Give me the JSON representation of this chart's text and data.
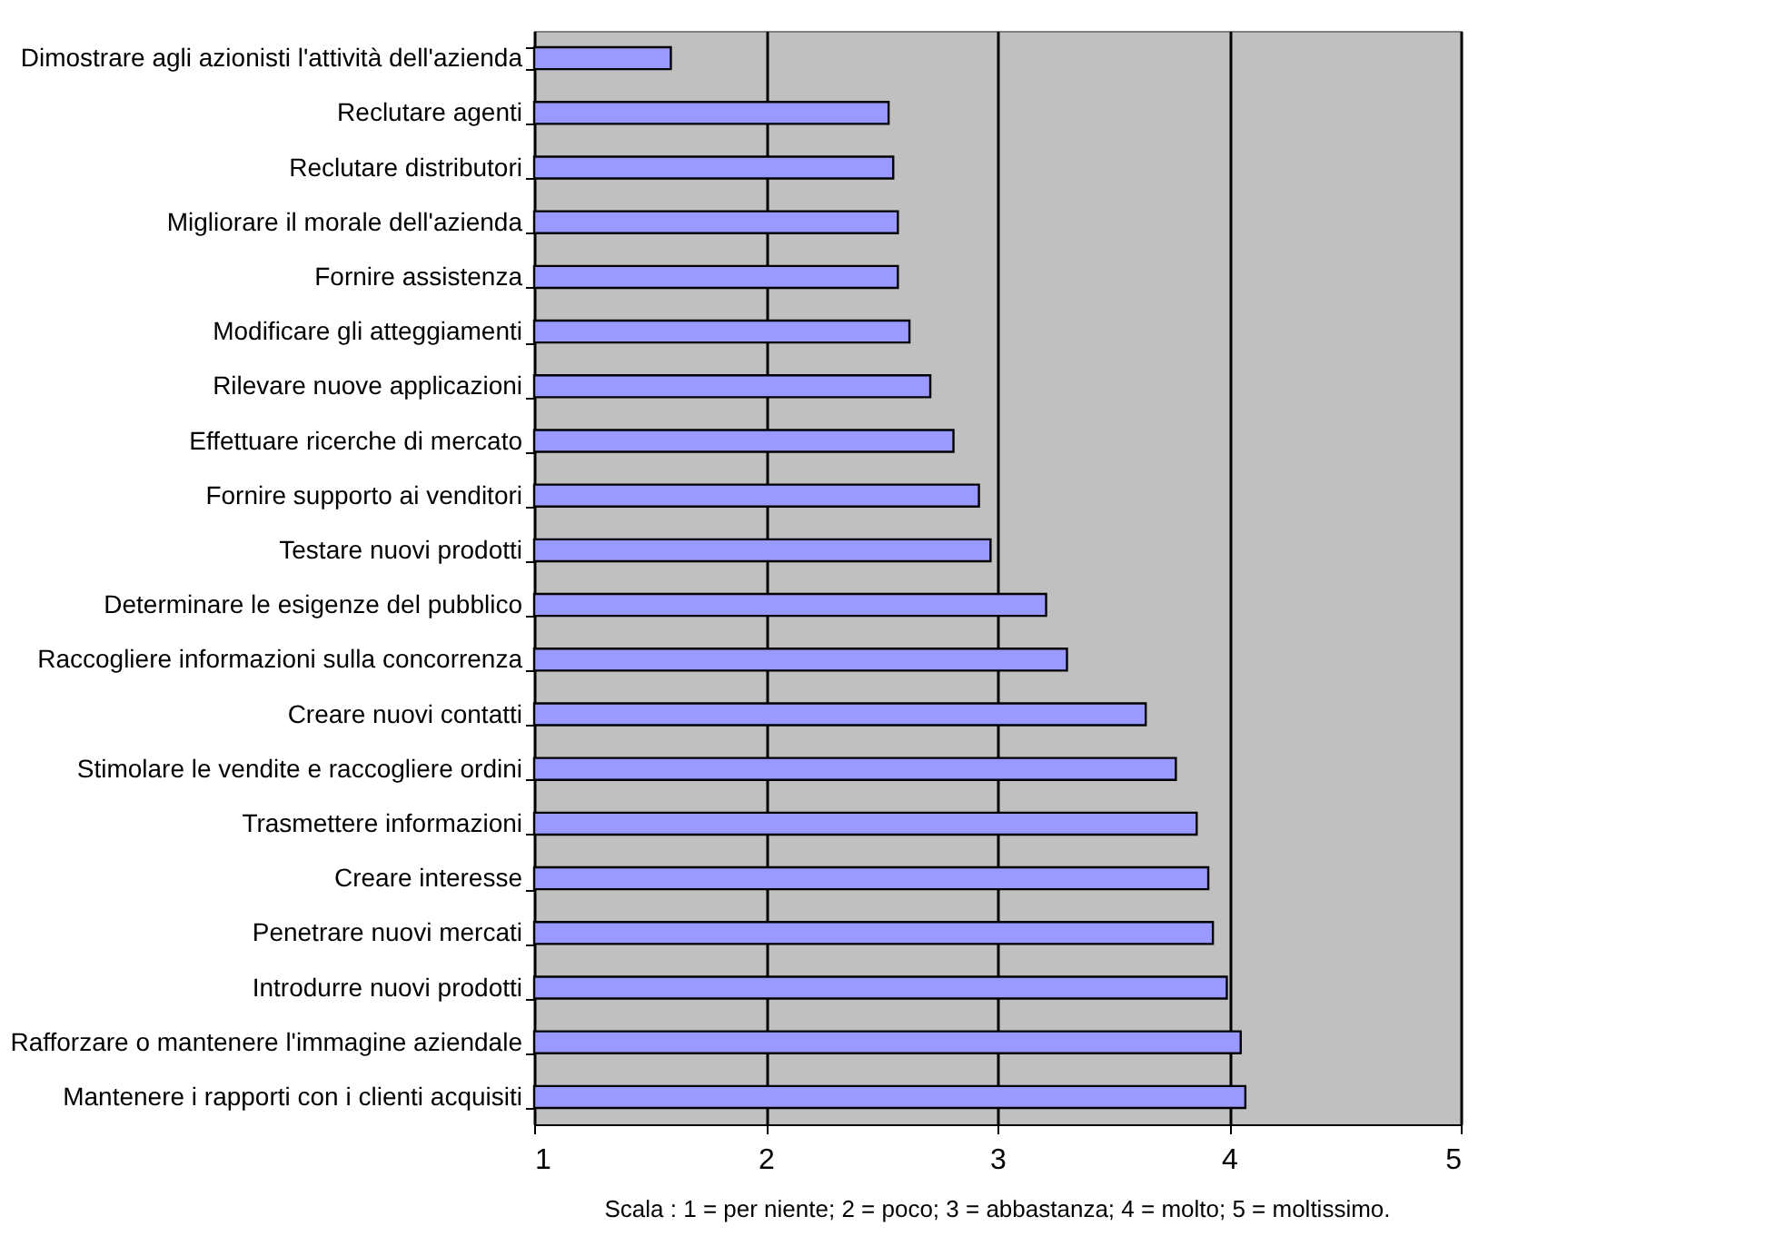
{
  "chart_data": {
    "type": "bar",
    "orientation": "horizontal",
    "categories": [
      "Dimostrare agli azionisti l'attività dell'azienda",
      "Reclutare agenti",
      "Reclutare distributori",
      "Migliorare il morale dell'azienda",
      "Fornire assistenza",
      "Modificare gli atteggiamenti ",
      "Rilevare nuove applicazioni",
      "Effettuare ricerche di mercato",
      "Fornire supporto ai venditori",
      "Testare nuovi prodotti",
      "Determinare le esigenze del pubblico",
      "Raccogliere informazioni sulla concorrenza",
      "Creare nuovi contatti",
      "Stimolare le vendite e raccogliere ordini",
      "Trasmettere informazioni",
      "Creare interesse",
      "Penetrare nuovi mercati",
      "Introdurre nuovi prodotti",
      "Rafforzare o mantenere l'immagine aziendale",
      "Mantenere i rapporti con i clienti acquisiti"
    ],
    "values": [
      1.59,
      2.53,
      2.55,
      2.57,
      2.57,
      2.62,
      2.71,
      2.81,
      2.92,
      2.97,
      3.21,
      3.3,
      3.64,
      3.77,
      3.86,
      3.91,
      3.93,
      3.99,
      4.05,
      4.07
    ],
    "color": "#9999ff",
    "xlim": [
      1,
      5
    ],
    "xticks": [
      1,
      2,
      3,
      4,
      5
    ],
    "grid": "x",
    "annotations": [
      "Scala : 1 = per niente; 2 = poco; 3 = abbastanza; 4 = molto; 5 = moltissimo."
    ]
  }
}
